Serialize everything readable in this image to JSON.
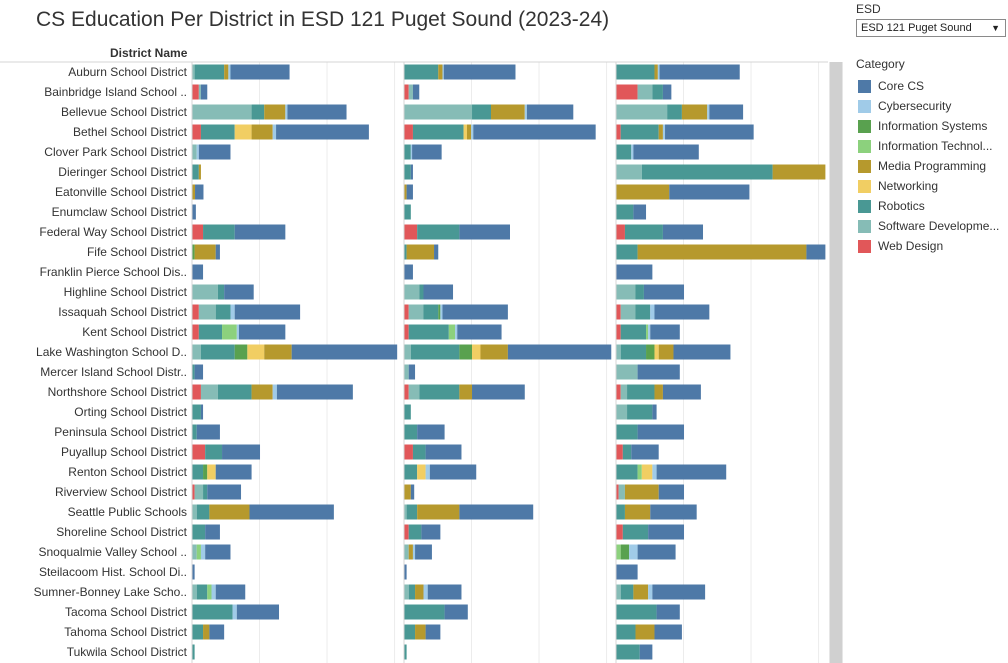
{
  "title": "CS Education Per District in ESD 121 Puget Sound (2023-24)",
  "filter": {
    "label": "ESD",
    "value": "ESD 121 Puget Sound"
  },
  "legend": {
    "title": "Category",
    "items": [
      {
        "label": "Core CS",
        "color": "#4e79a7"
      },
      {
        "label": "Cybersecurity",
        "color": "#a0cbe8"
      },
      {
        "label": "Information Systems",
        "color": "#59a14f"
      },
      {
        "label": "Information Technol...",
        "color": "#8cd17d"
      },
      {
        "label": "Media Programming",
        "color": "#b6992d"
      },
      {
        "label": "Networking",
        "color": "#f1ce63"
      },
      {
        "label": "Robotics",
        "color": "#499894"
      },
      {
        "label": "Software Developme...",
        "color": "#86bcb6"
      },
      {
        "label": "Web Design",
        "color": "#e15759"
      }
    ]
  },
  "chart_data": {
    "type": "bar",
    "orientation": "horizontal-stacked",
    "row_header": "District Name",
    "panels": 3,
    "stack_order": [
      "Web Design",
      "Software Developme...",
      "Robotics",
      "Information Technol...",
      "Information Systems",
      "Networking",
      "Media Programming",
      "Cybersecurity",
      "Core CS"
    ],
    "panel_axis_max": [
      50,
      50,
      50
    ],
    "districts": [
      {
        "name": "Auburn School District",
        "panels": [
          {
            "Software Developme...": 0.5,
            "Robotics": 7,
            "Media Programming": 1,
            "Cybersecurity": 0.5,
            "Core CS": 14
          },
          {
            "Robotics": 8,
            "Media Programming": 1,
            "Cybersecurity": 0.3,
            "Core CS": 17
          },
          {
            "Robotics": 9,
            "Media Programming": 0.8,
            "Cybersecurity": 0.4,
            "Core CS": 19
          }
        ]
      },
      {
        "name": "Bainbridge Island School ..",
        "panels": [
          {
            "Web Design": 1.5,
            "Software Developme...": 0.5,
            "Core CS": 1.5
          },
          {
            "Web Design": 1,
            "Software Developme...": 1,
            "Core CS": 1.5
          },
          {
            "Web Design": 5,
            "Software Developme...": 3.5,
            "Robotics": 2.5,
            "Core CS": 2
          }
        ]
      },
      {
        "name": "Bellevue School District",
        "panels": [
          {
            "Software Developme...": 14,
            "Robotics": 3,
            "Media Programming": 5,
            "Cybersecurity": 0.5,
            "Core CS": 14
          },
          {
            "Software Developme...": 16,
            "Robotics": 4.5,
            "Media Programming": 8,
            "Cybersecurity": 0.5,
            "Core CS": 11
          },
          {
            "Software Developme...": 12,
            "Robotics": 3.5,
            "Media Programming": 6,
            "Cybersecurity": 0.5,
            "Core CS": 8
          }
        ]
      },
      {
        "name": "Bethel School District",
        "panels": [
          {
            "Web Design": 2,
            "Robotics": 8,
            "Networking": 4,
            "Media Programming": 5,
            "Cybersecurity": 0.8,
            "Core CS": 22
          },
          {
            "Web Design": 2,
            "Robotics": 12,
            "Networking": 0.8,
            "Media Programming": 1,
            "Cybersecurity": 0.5,
            "Core CS": 29
          },
          {
            "Web Design": 1,
            "Robotics": 9,
            "Media Programming": 1,
            "Cybersecurity": 0.5,
            "Core CS": 21
          }
        ]
      },
      {
        "name": "Clover Park School District",
        "panels": [
          {
            "Software Developme...": 1,
            "Cybersecurity": 0.5,
            "Core CS": 7.5
          },
          {
            "Robotics": 1.5,
            "Cybersecurity": 0.3,
            "Core CS": 7
          },
          {
            "Robotics": 3.5,
            "Cybersecurity": 0.5,
            "Core CS": 15.5
          }
        ]
      },
      {
        "name": "Dieringer School District",
        "panels": [
          {
            "Robotics": 1.5,
            "Media Programming": 0.5
          },
          {
            "Robotics": 1.5,
            "Core CS": 0.5
          },
          {
            "Software Developme...": 6,
            "Robotics": 31,
            "Media Programming": 12.5
          }
        ]
      },
      {
        "name": "Eatonville School District",
        "panels": [
          {
            "Media Programming": 0.6,
            "Core CS": 2
          },
          {
            "Media Programming": 0.5,
            "Core CS": 1.5
          },
          {
            "Media Programming": 12.5,
            "Core CS": 19
          }
        ]
      },
      {
        "name": "Enumclaw School District",
        "panels": [
          {
            "Core CS": 0.8
          },
          {
            "Robotics": 1.5
          },
          {
            "Robotics": 4,
            "Core CS": 3
          }
        ]
      },
      {
        "name": "Federal Way School District",
        "panels": [
          {
            "Web Design": 2.5,
            "Robotics": 7.5,
            "Core CS": 12
          },
          {
            "Web Design": 3,
            "Robotics": 10,
            "Core CS": 12
          },
          {
            "Web Design": 2,
            "Robotics": 9,
            "Core CS": 9.5
          }
        ]
      },
      {
        "name": "Fife School District",
        "panels": [
          {
            "Information Systems": 0.5,
            "Media Programming": 5,
            "Core CS": 1
          },
          {
            "Robotics": 0.5,
            "Media Programming": 6.5,
            "Core CS": 1
          },
          {
            "Robotics": 5,
            "Media Programming": 40,
            "Core CS": 4.5
          }
        ]
      },
      {
        "name": "Franklin Pierce School Dis..",
        "panels": [
          {
            "Core CS": 2.5
          },
          {
            "Core CS": 2
          },
          {
            "Core CS": 8.5
          }
        ]
      },
      {
        "name": "Highline School District",
        "panels": [
          {
            "Software Developme...": 6,
            "Robotics": 1.5,
            "Core CS": 7
          },
          {
            "Software Developme...": 3.5,
            "Robotics": 1,
            "Core CS": 7
          },
          {
            "Software Developme...": 4.5,
            "Robotics": 2,
            "Core CS": 9.5
          }
        ]
      },
      {
        "name": "Issaquah School District",
        "panels": [
          {
            "Web Design": 1.5,
            "Software Developme...": 4,
            "Robotics": 3.5,
            "Cybersecurity": 1,
            "Core CS": 15.5
          },
          {
            "Web Design": 1,
            "Software Developme...": 3.5,
            "Robotics": 3.5,
            "Information Systems": 0.5,
            "Cybersecurity": 0.5,
            "Core CS": 15.5
          },
          {
            "Web Design": 1,
            "Software Developme...": 3.5,
            "Robotics": 3.5,
            "Cybersecurity": 1,
            "Core CS": 13
          }
        ]
      },
      {
        "name": "Kent School District",
        "panels": [
          {
            "Web Design": 1.5,
            "Robotics": 5.5,
            "Information Technol...": 3.5,
            "Cybersecurity": 0.5,
            "Core CS": 11
          },
          {
            "Web Design": 1,
            "Robotics": 9.5,
            "Information Technol...": 1.5,
            "Cybersecurity": 0.5,
            "Core CS": 10.5
          },
          {
            "Web Design": 1,
            "Robotics": 6,
            "Information Technol...": 0.5,
            "Cybersecurity": 0.5,
            "Core CS": 7
          }
        ]
      },
      {
        "name": "Lake Washington School D..",
        "panels": [
          {
            "Software Developme...": 2,
            "Robotics": 8,
            "Networking": 4,
            "Media Programming": 6.5,
            "Information Systems": 3,
            "Core CS": 25
          },
          {
            "Software Developme...": 1.5,
            "Robotics": 11.5,
            "Networking": 2,
            "Media Programming": 6.5,
            "Information Systems": 3,
            "Core CS": 24.5
          },
          {
            "Software Developme...": 1,
            "Robotics": 6,
            "Networking": 1,
            "Media Programming": 3.5,
            "Information Systems": 2,
            "Core CS": 13.5
          }
        ]
      },
      {
        "name": "Mercer Island School Distr..",
        "panels": [
          {
            "Robotics": 0.5,
            "Core CS": 2
          },
          {
            "Software Developme...": 1,
            "Core CS": 1.5
          },
          {
            "Software Developme...": 5,
            "Core CS": 10
          }
        ]
      },
      {
        "name": "Northshore School District",
        "panels": [
          {
            "Web Design": 2,
            "Software Developme...": 4,
            "Robotics": 8,
            "Media Programming": 5,
            "Cybersecurity": 1,
            "Core CS": 18
          },
          {
            "Web Design": 1,
            "Software Developme...": 2.5,
            "Robotics": 9.5,
            "Media Programming": 3,
            "Core CS": 12.5
          },
          {
            "Web Design": 1,
            "Software Developme...": 1.5,
            "Robotics": 6.5,
            "Media Programming": 2,
            "Core CS": 9
          }
        ]
      },
      {
        "name": "Orting School District",
        "panels": [
          {
            "Robotics": 2,
            "Core CS": 0.5
          },
          {
            "Robotics": 1.5
          },
          {
            "Software Developme...": 2.5,
            "Robotics": 6,
            "Core CS": 1
          }
        ]
      },
      {
        "name": "Peninsula School District",
        "panels": [
          {
            "Robotics": 1,
            "Core CS": 5.5
          },
          {
            "Robotics": 3,
            "Core CS": 6.5
          },
          {
            "Robotics": 5,
            "Core CS": 11
          }
        ]
      },
      {
        "name": "Puyallup School District",
        "panels": [
          {
            "Web Design": 3,
            "Robotics": 4,
            "Core CS": 9
          },
          {
            "Web Design": 2,
            "Robotics": 3,
            "Core CS": 8.5
          },
          {
            "Web Design": 1.5,
            "Robotics": 2,
            "Core CS": 6.5
          }
        ]
      },
      {
        "name": "Renton School District",
        "panels": [
          {
            "Robotics": 2.5,
            "Networking": 2,
            "Information Systems": 1,
            "Core CS": 8.5
          },
          {
            "Robotics": 3,
            "Networking": 2,
            "Cybersecurity": 1,
            "Core CS": 11
          },
          {
            "Robotics": 5,
            "Networking": 2.5,
            "Information Technol...": 1,
            "Cybersecurity": 1,
            "Core CS": 16.5
          }
        ]
      },
      {
        "name": "Riverview School District",
        "panels": [
          {
            "Web Design": 0.5,
            "Software Developme...": 2,
            "Robotics": 1,
            "Core CS": 8
          },
          {
            "Media Programming": 1.5,
            "Core CS": 0.8
          },
          {
            "Web Design": 0.5,
            "Software Developme...": 1.5,
            "Media Programming": 8,
            "Core CS": 6
          }
        ]
      },
      {
        "name": "Seattle Public Schools",
        "panels": [
          {
            "Software Developme...": 1,
            "Robotics": 3,
            "Media Programming": 9.5,
            "Core CS": 20
          },
          {
            "Software Developme...": 0.5,
            "Robotics": 2.5,
            "Media Programming": 10,
            "Core CS": 17.5
          },
          {
            "Robotics": 2,
            "Media Programming": 6,
            "Core CS": 11
          }
        ]
      },
      {
        "name": "Shoreline School District",
        "panels": [
          {
            "Robotics": 3,
            "Core CS": 3.5
          },
          {
            "Web Design": 1,
            "Robotics": 3,
            "Core CS": 4.5
          },
          {
            "Web Design": 1.5,
            "Robotics": 6,
            "Core CS": 8.5
          }
        ]
      },
      {
        "name": "Snoqualmie Valley School ..",
        "panels": [
          {
            "Software Developme...": 1,
            "Information Technol...": 1,
            "Cybersecurity": 1,
            "Core CS": 6
          },
          {
            "Software Developme...": 1,
            "Media Programming": 1,
            "Cybersecurity": 0.5,
            "Core CS": 4
          },
          {
            "Information Systems": 2,
            "Information Technol...": 1,
            "Cybersecurity": 2,
            "Core CS": 9
          }
        ]
      },
      {
        "name": "Steilacoom Hist. School Di..",
        "panels": [
          {
            "Core CS": 0.5
          },
          {
            "Core CS": 0.5
          },
          {
            "Core CS": 5
          }
        ]
      },
      {
        "name": "Sumner-Bonney Lake Scho..",
        "panels": [
          {
            "Software Developme...": 1,
            "Robotics": 2.5,
            "Information Technol...": 1,
            "Cybersecurity": 1,
            "Core CS": 7
          },
          {
            "Software Developme...": 1,
            "Robotics": 1.5,
            "Media Programming": 2,
            "Cybersecurity": 1,
            "Core CS": 8
          },
          {
            "Software Developme...": 1,
            "Robotics": 3,
            "Media Programming": 3.5,
            "Cybersecurity": 1,
            "Core CS": 12.5
          }
        ]
      },
      {
        "name": "Tacoma School District",
        "panels": [
          {
            "Robotics": 9.5,
            "Cybersecurity": 1,
            "Core CS": 10
          },
          {
            "Robotics": 9.5,
            "Core CS": 5.5
          },
          {
            "Robotics": 9.5,
            "Core CS": 5.5
          }
        ]
      },
      {
        "name": "Tahoma School District",
        "panels": [
          {
            "Robotics": 2.5,
            "Media Programming": 1.5,
            "Core CS": 3.5
          },
          {
            "Robotics": 2.5,
            "Media Programming": 2.5,
            "Core CS": 3.5
          },
          {
            "Robotics": 4.5,
            "Media Programming": 4.5,
            "Core CS": 6.5
          }
        ]
      },
      {
        "name": "Tukwila School District",
        "panels": [
          {
            "Robotics": 0.5
          },
          {
            "Robotics": 0.5
          },
          {
            "Robotics": 5.5,
            "Core CS": 3
          }
        ]
      }
    ]
  }
}
